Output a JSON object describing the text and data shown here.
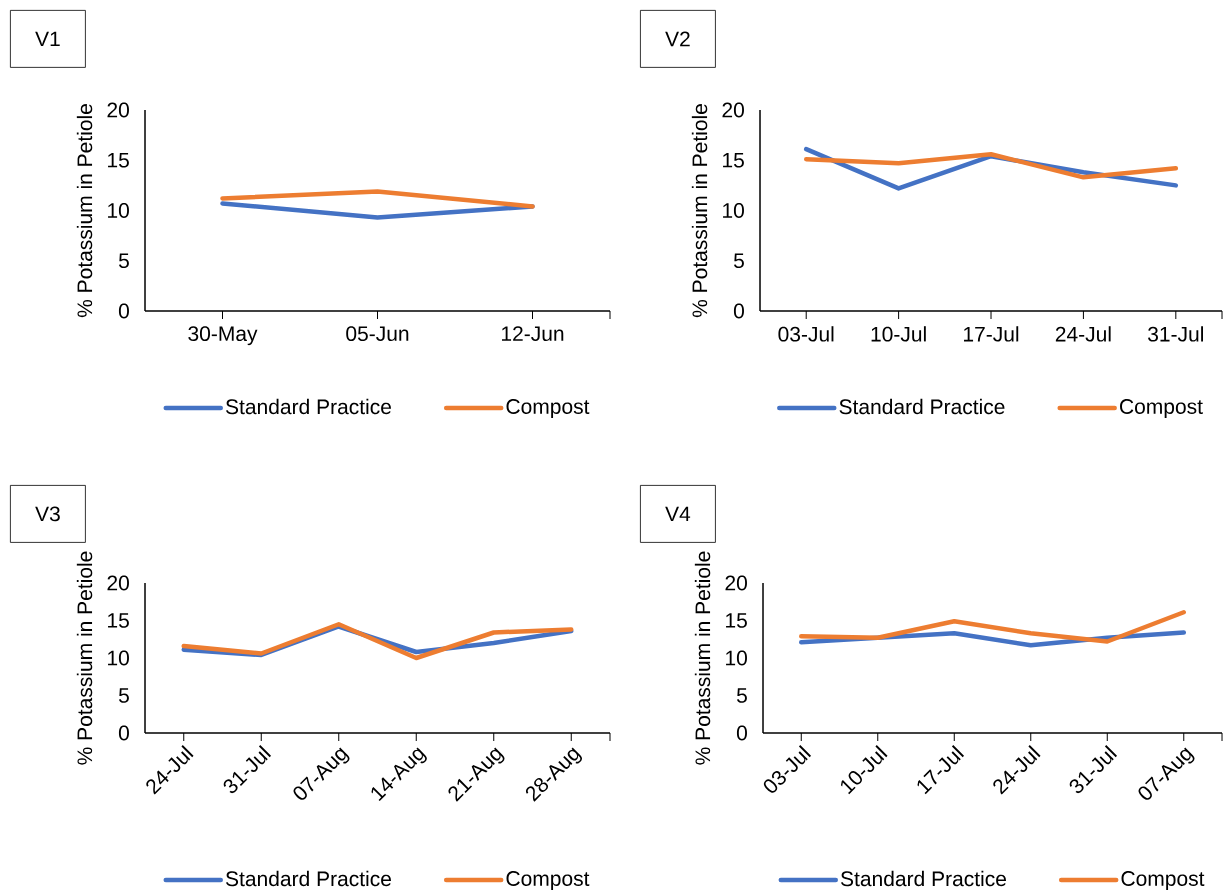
{
  "chart_data": [
    {
      "type": "line",
      "title": "V1",
      "ylabel": "% Potassium in Petiole",
      "categories": [
        "30-May",
        "05-Jun",
        "12-Jun"
      ],
      "ylim": [
        0,
        20
      ],
      "yticks": [
        0,
        5,
        10,
        15,
        20
      ],
      "legend": "bottom",
      "marker": "none",
      "series": [
        {
          "name": "Standard Practice",
          "color": "#4472c4",
          "values": [
            10.7,
            9.3,
            10.4
          ]
        },
        {
          "name": "Compost",
          "color": "#ed7d31",
          "values": [
            11.2,
            11.9,
            10.4
          ]
        }
      ]
    },
    {
      "type": "line",
      "title": "V2",
      "ylabel": "% Potassium in Petiole",
      "categories": [
        "03-Jul",
        "10-Jul",
        "17-Jul",
        "24-Jul",
        "31-Jul"
      ],
      "ylim": [
        0,
        20
      ],
      "yticks": [
        0,
        5,
        10,
        15,
        20
      ],
      "legend": "bottom",
      "marker": "none",
      "series": [
        {
          "name": "Standard Practice",
          "color": "#4472c4",
          "values": [
            16.1,
            12.2,
            15.4,
            13.8,
            12.5
          ]
        },
        {
          "name": "Compost",
          "color": "#ed7d31",
          "values": [
            15.1,
            14.7,
            15.6,
            13.3,
            14.2
          ]
        }
      ]
    },
    {
      "type": "line",
      "title": "V3",
      "ylabel": "% Potassium in Petiole",
      "categories": [
        "24-Jul",
        "31-Jul",
        "07-Aug",
        "14-Aug",
        "21-Aug",
        "28-Aug"
      ],
      "ylim": [
        0,
        20
      ],
      "yticks": [
        0,
        5,
        10,
        15,
        20
      ],
      "legend": "bottom",
      "marker": "none",
      "series": [
        {
          "name": "Standard Practice",
          "color": "#4472c4",
          "values": [
            11.1,
            10.4,
            14.2,
            10.8,
            12.0,
            13.6
          ]
        },
        {
          "name": "Compost",
          "color": "#ed7d31",
          "values": [
            11.6,
            10.6,
            14.5,
            10.0,
            13.4,
            13.8
          ]
        }
      ]
    },
    {
      "type": "line",
      "title": "V4",
      "ylabel": "% Potassium in Petiole",
      "categories": [
        "03-Jul",
        "10-Jul",
        "17-Jul",
        "24-Jul",
        "31-Jul",
        "07-Aug"
      ],
      "ylim": [
        0,
        20
      ],
      "yticks": [
        0,
        5,
        10,
        15,
        20
      ],
      "legend": "bottom",
      "marker": "none",
      "series": [
        {
          "name": "Standard Practice",
          "color": "#4472c4",
          "values": [
            12.1,
            12.7,
            13.3,
            11.7,
            12.7,
            13.4
          ]
        },
        {
          "name": "Compost",
          "color": "#ed7d31",
          "values": [
            12.9,
            12.7,
            14.9,
            13.3,
            12.2,
            16.1
          ]
        }
      ]
    }
  ]
}
